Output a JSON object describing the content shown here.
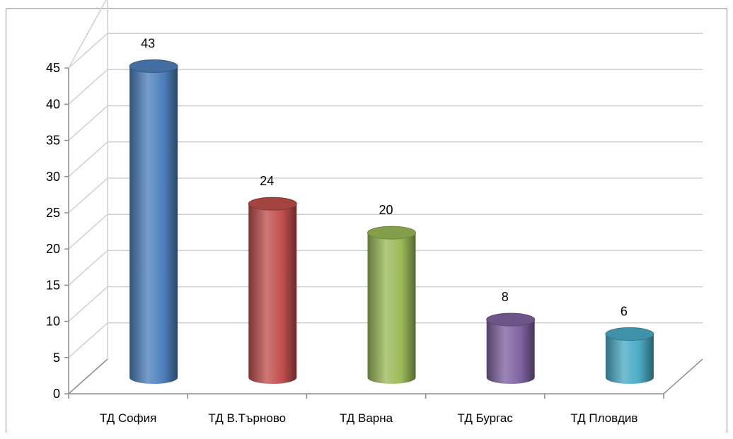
{
  "chart_data": {
    "type": "bar",
    "style": "3d-cylinder",
    "categories": [
      "ТД София",
      "ТД В.Търново",
      "ТД Варна",
      "ТД Бургас",
      "ТД Пловдив"
    ],
    "values": [
      43,
      24,
      20,
      8,
      6
    ],
    "data_labels": [
      "43",
      "24",
      "20",
      "8",
      "6"
    ],
    "colors": [
      "#4f81bd",
      "#c0504d",
      "#9bbb59",
      "#8064a2",
      "#4bacc6"
    ],
    "ylim": [
      0,
      45
    ],
    "yticks": [
      0,
      5,
      10,
      15,
      20,
      25,
      30,
      35,
      40,
      45
    ],
    "ytick_labels": [
      "0",
      "5",
      "10",
      "15",
      "20",
      "25",
      "30",
      "35",
      "40",
      "45"
    ],
    "grid": true,
    "legend": "none"
  }
}
